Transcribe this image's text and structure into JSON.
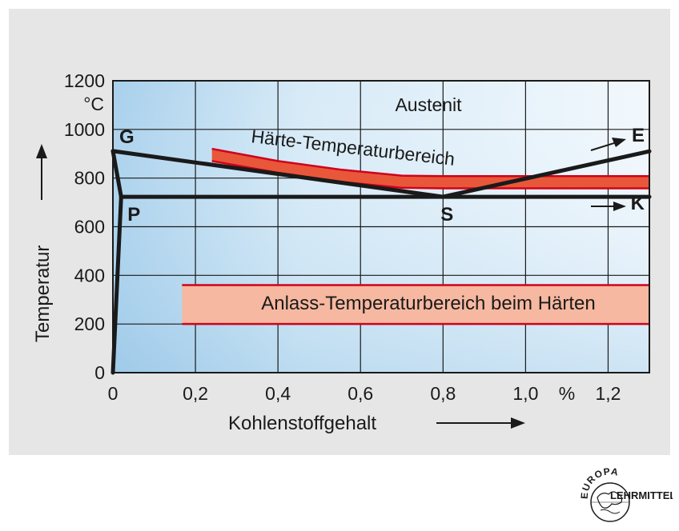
{
  "chart_data": {
    "type": "line",
    "title": "",
    "xlabel": "Kohlenstoffgehalt",
    "x_unit": "%",
    "ylabel": "Temperatur",
    "y_unit": "°C",
    "xlim": [
      0,
      1.3
    ],
    "ylim": [
      0,
      1200
    ],
    "x_ticks": [
      0,
      0.2,
      0.4,
      0.6,
      0.8,
      1.0,
      1.2
    ],
    "x_tick_labels": [
      "0",
      "0,2",
      "0,4",
      "0,6",
      "0,8",
      "1,0",
      "1,2"
    ],
    "y_ticks": [
      0,
      200,
      400,
      600,
      800,
      1000,
      1200
    ],
    "y_tick_labels": [
      "0",
      "200",
      "400",
      "600",
      "800",
      "1000",
      "1200"
    ],
    "grid": true,
    "region_label": "Austenit",
    "series": [
      {
        "id": "GS",
        "points": [
          [
            0,
            911
          ],
          [
            0.8,
            723
          ]
        ]
      },
      {
        "id": "SE",
        "points": [
          [
            0.8,
            723
          ],
          [
            1.3,
            910
          ]
        ]
      },
      {
        "id": "GP",
        "points": [
          [
            0,
            911
          ],
          [
            0.02,
            723
          ]
        ]
      },
      {
        "id": "PK",
        "points": [
          [
            0.02,
            723
          ],
          [
            1.3,
            723
          ]
        ]
      },
      {
        "id": "P0",
        "points": [
          [
            0,
            0
          ],
          [
            0.02,
            723
          ]
        ]
      }
    ],
    "points": [
      {
        "label": "G",
        "x": 0,
        "y": 911
      },
      {
        "label": "P",
        "x": 0.02,
        "y": 723
      },
      {
        "label": "S",
        "x": 0.8,
        "y": 723
      },
      {
        "label": "E",
        "x": 1.3,
        "y": 910
      },
      {
        "label": "K",
        "x": 1.3,
        "y": 723
      }
    ],
    "bands": [
      {
        "name": "Härte-Temperaturbereich",
        "color": "#e8573a",
        "edge_color": "#d0021b",
        "upper": [
          [
            0.24,
            920
          ],
          [
            0.4,
            870
          ],
          [
            0.55,
            835
          ],
          [
            0.7,
            810
          ],
          [
            0.8,
            808
          ],
          [
            1.3,
            808
          ]
        ],
        "lower": [
          [
            0.24,
            870
          ],
          [
            0.4,
            822
          ],
          [
            0.55,
            785
          ],
          [
            0.7,
            760
          ],
          [
            0.8,
            758
          ],
          [
            1.3,
            758
          ]
        ]
      },
      {
        "name": "Anlass-Temperaturbereich beim Härten",
        "color": "#f6b8a0",
        "edge_color": "#d0021b",
        "x_range": [
          0.22,
          1.3
        ],
        "y_range": [
          200,
          360
        ]
      }
    ]
  },
  "colors": {
    "panel_bg": "#e6e6e6",
    "plot_bg_light": "#eef6fc",
    "plot_bg_dark": "#a8d0ec",
    "line": "#1a1a1a",
    "accent_red": "#d0021b"
  },
  "logo": {
    "top_text": "EUROPA",
    "bottom_text": "LEHRMITTEL"
  }
}
